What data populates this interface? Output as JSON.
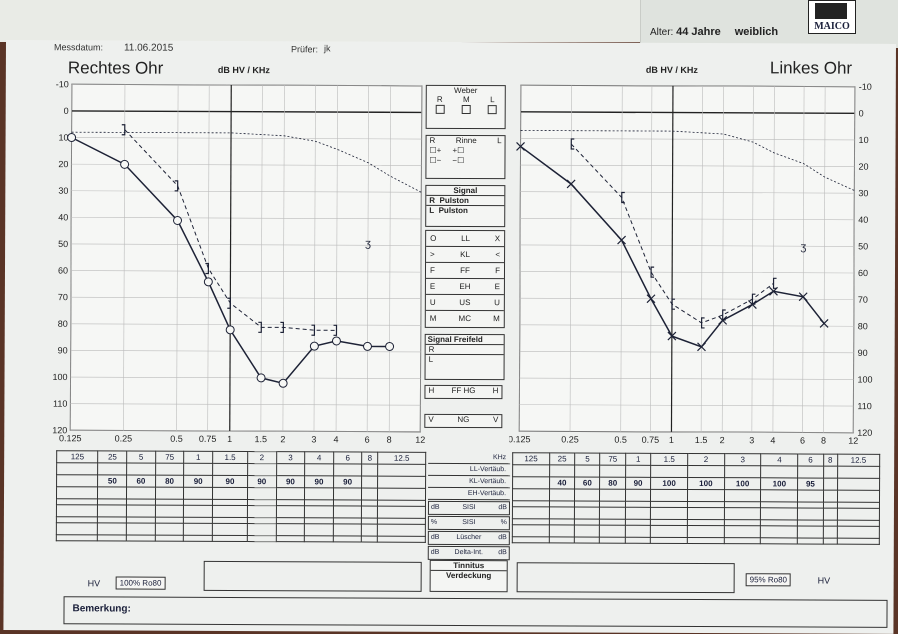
{
  "header": {
    "messdatum_label": "Messdatum:",
    "messdatum": "11.06.2015",
    "pruefer_label": "Prüfer:",
    "pruefer": "jk",
    "alter_label": "Alter:",
    "alter": "44 Jahre",
    "geschlecht": "weiblich",
    "brand": "MAICO"
  },
  "chart_data": [
    {
      "type": "line",
      "title": "Rechtes Ohr",
      "unit_label": "dB HV / KHz",
      "xlabel": "KHz",
      "x_ticks": [
        "0.125",
        "0.25",
        "0.5",
        "0.75",
        "1",
        "1.5",
        "2",
        "3",
        "4",
        "6",
        "8",
        "12"
      ],
      "y_ticks": [
        "-10",
        "0",
        "10",
        "20",
        "30",
        "40",
        "50",
        "60",
        "70",
        "80",
        "90",
        "100",
        "110",
        "120"
      ],
      "ylim": [
        -10,
        120
      ],
      "y_inverted": true,
      "series": [
        {
          "name": "LL",
          "style": "solid-circle",
          "x": [
            0.125,
            0.25,
            0.5,
            0.75,
            1,
            1.5,
            2,
            3,
            4,
            6,
            8
          ],
          "y": [
            10,
            20,
            41,
            64,
            82,
            100,
            102,
            88,
            86,
            88,
            88
          ]
        },
        {
          "name": "KL",
          "style": "dashed-bracket",
          "x": [
            0.25,
            0.5,
            0.75,
            1,
            1.5,
            2,
            3,
            4
          ],
          "y": [
            7,
            28,
            59,
            72,
            81,
            81,
            82,
            82
          ]
        },
        {
          "name": "Unbehaglichkeit",
          "style": "dotted",
          "x": [
            0.125,
            0.25,
            0.5,
            1,
            2,
            3,
            4,
            6,
            8,
            12
          ],
          "y": [
            8,
            8,
            8,
            8,
            9,
            11,
            14,
            19,
            24,
            30
          ]
        }
      ],
      "extra_markers": [
        {
          "x": 6,
          "y": 49,
          "label": "ʒ"
        }
      ]
    },
    {
      "type": "line",
      "title": "Linkes Ohr",
      "unit_label": "dB HV / KHz",
      "xlabel": "KHz",
      "x_ticks": [
        "0.125",
        "0.25",
        "0.5",
        "0.75",
        "1",
        "1.5",
        "2",
        "3",
        "4",
        "6",
        "8",
        "12"
      ],
      "y_ticks": [
        "-10",
        "0",
        "10",
        "20",
        "30",
        "40",
        "50",
        "60",
        "70",
        "80",
        "90",
        "100",
        "110",
        "120"
      ],
      "ylim": [
        -10,
        120
      ],
      "y_inverted": true,
      "series": [
        {
          "name": "LL",
          "style": "solid-cross",
          "x": [
            0.125,
            0.25,
            0.5,
            0.75,
            1,
            1.5,
            2,
            3,
            4,
            6,
            8
          ],
          "y": [
            13,
            27,
            48,
            70,
            84,
            88,
            78,
            72,
            67,
            69,
            79
          ]
        },
        {
          "name": "KL",
          "style": "dashed-bracket",
          "x": [
            0.25,
            0.5,
            0.75,
            1,
            1.5,
            2,
            3,
            4
          ],
          "y": [
            12,
            32,
            60,
            72,
            79,
            76,
            70,
            64
          ]
        },
        {
          "name": "Unbehaglichkeit",
          "style": "dotted",
          "x": [
            0.125,
            0.25,
            0.5,
            1,
            2,
            3,
            4,
            6,
            8,
            12
          ],
          "y": [
            7,
            7,
            7,
            7,
            8,
            11,
            15,
            19,
            24,
            29
          ]
        }
      ],
      "extra_markers": [
        {
          "x": 6,
          "y": 50,
          "label": "ʒ"
        }
      ]
    }
  ],
  "middle_panel": {
    "weber_title": "Weber",
    "weber_labels": [
      "R",
      "M",
      "L"
    ],
    "rinne_title": "Rinne",
    "rinne_r": "R",
    "rinne_l": "L",
    "signal_title": "Signal",
    "signal_rows": [
      [
        "R",
        "Pulston"
      ],
      [
        "L",
        "Pulston"
      ]
    ],
    "legend_rows": [
      [
        "O",
        "LL",
        "X"
      ],
      [
        ">",
        "KL",
        "<"
      ],
      [
        "F",
        "FF",
        "F"
      ],
      [
        "E",
        "EH",
        "E"
      ],
      [
        "U",
        "US",
        "U"
      ],
      [
        "M",
        "MC",
        "M"
      ]
    ],
    "freifeld_title": "Signal Freifeld",
    "freifeld_rows": [
      "R",
      "L"
    ],
    "ffhg_row": [
      "H",
      "FF HG",
      "H"
    ],
    "ng_row": [
      "V",
      "NG",
      "V"
    ],
    "khz_label": "KHz",
    "row_labels": [
      "LL-Vertäub.",
      "KL-Vertäub.",
      "EH-Vertäub."
    ],
    "sisi_rows": [
      [
        "dB",
        "SISI",
        "dB"
      ],
      [
        "%",
        "SISI",
        "%"
      ],
      [
        "dB",
        "Lüscher",
        "dB"
      ],
      [
        "dB",
        "Delta-Int.",
        "dB"
      ]
    ],
    "tinnitus": "Tinnitus",
    "verdeckung": "Verdeckung"
  },
  "freq_columns": [
    "125",
    "25",
    "5",
    "75",
    "1",
    "1.5",
    "2",
    "3",
    "4",
    "6",
    "8",
    "12.5"
  ],
  "right_ear_kl_vertaeub": [
    "",
    "50",
    "60",
    "80",
    "90",
    "90",
    "90",
    "90",
    "90",
    "90",
    "",
    ""
  ],
  "left_ear_kl_vertaeub": [
    "",
    "40",
    "60",
    "80",
    "90",
    "100",
    "100",
    "100",
    "100",
    "95",
    "",
    ""
  ],
  "hv_right": {
    "label": "HV",
    "value": "100% Ro80"
  },
  "hv_left": {
    "label": "HV",
    "value": "95% Ro80"
  },
  "bemerkung": "Bemerkung:"
}
